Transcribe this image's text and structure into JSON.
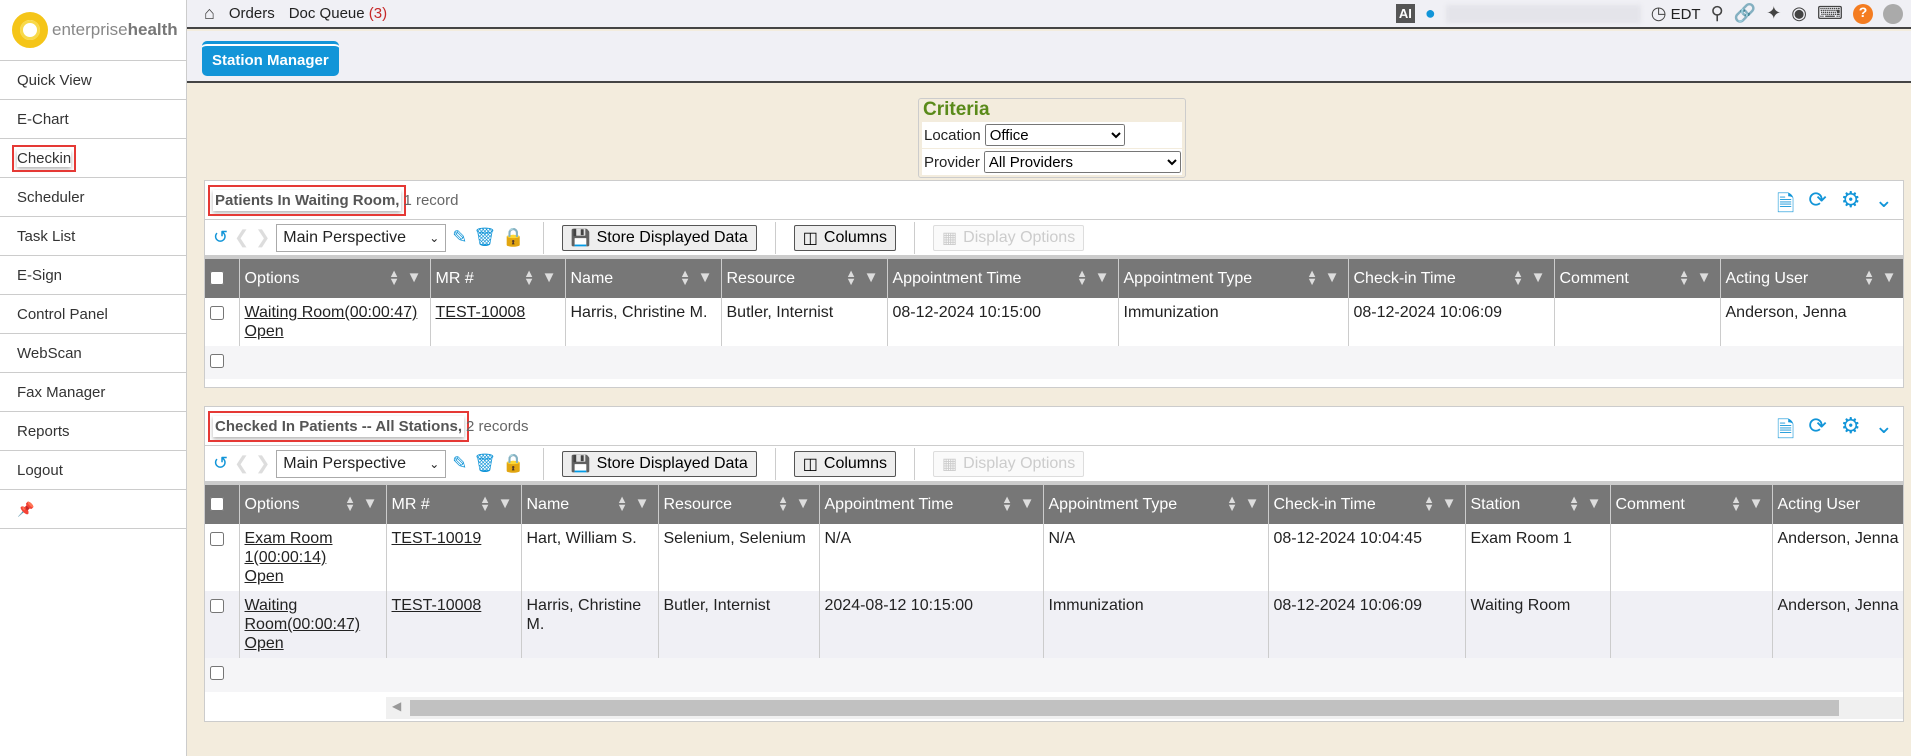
{
  "logo": {
    "text_light": "enterprise",
    "text_bold": "health"
  },
  "sidebar": {
    "items": [
      {
        "label": "Quick View"
      },
      {
        "label": "E-Chart"
      },
      {
        "label": "Checkin",
        "highlighted": true
      },
      {
        "label": "Scheduler"
      },
      {
        "label": "Task List"
      },
      {
        "label": "E-Sign"
      },
      {
        "label": "Control Panel"
      },
      {
        "label": "WebScan"
      },
      {
        "label": "Fax Manager"
      },
      {
        "label": "Reports"
      },
      {
        "label": "Logout"
      }
    ],
    "pin_icon": "pin-icon"
  },
  "topbar": {
    "orders": "Orders",
    "doc_queue": "Doc Queue",
    "doc_queue_count": "(3)",
    "ai": "AI",
    "timezone": "EDT"
  },
  "tab": {
    "label": "Station Manager"
  },
  "criteria": {
    "title": "Criteria",
    "location_label": "Location",
    "location_value": "Office",
    "provider_label": "Provider",
    "provider_value": "All Providers"
  },
  "toolbar": {
    "perspective": "Main Perspective",
    "store": "Store Displayed Data",
    "columns": "Columns",
    "display_options": "Display Options"
  },
  "panel1": {
    "title": "Patients In Waiting Room,",
    "count": "1 record",
    "columns": [
      "Options",
      "MR #",
      "Name",
      "Resource",
      "Appointment Time",
      "Appointment Type",
      "Check-in Time",
      "Comment",
      "Acting User"
    ],
    "rows": [
      [
        "Waiting Room(00:00:47)|Open",
        "TEST-10008",
        "Harris, Christine M.",
        "Butler, Internist",
        "08-12-2024 10:15:00",
        "Immunization",
        "08-12-2024 10:06:09",
        "",
        "Anderson, Jenna"
      ]
    ]
  },
  "panel2": {
    "title": "Checked In Patients -- All Stations,",
    "count": "2 records",
    "columns": [
      "Options",
      "MR #",
      "Name",
      "Resource",
      "Appointment Time",
      "Appointment Type",
      "Check-in Time",
      "Station",
      "Comment",
      "Acting User"
    ],
    "rows": [
      [
        "Exam Room 1(00:00:14)|Open",
        "TEST-10019",
        "Hart, William S.",
        "Selenium, Selenium",
        "N/A",
        "N/A",
        "08-12-2024 10:04:45",
        "Exam Room 1",
        "",
        "Anderson, Jenna"
      ],
      [
        "Waiting Room(00:00:47)|Open",
        "TEST-10008",
        "Harris, Christine M.",
        "Butler, Internist",
        "2024-08-12 10:15:00",
        "Immunization",
        "08-12-2024 10:06:09",
        "Waiting Room",
        "",
        "Anderson, Jenna"
      ]
    ]
  },
  "colors": {
    "accent": "#1295d8",
    "header_bg": "#777777",
    "highlight": "#e53935",
    "criteria_title": "#5a8a1a"
  }
}
